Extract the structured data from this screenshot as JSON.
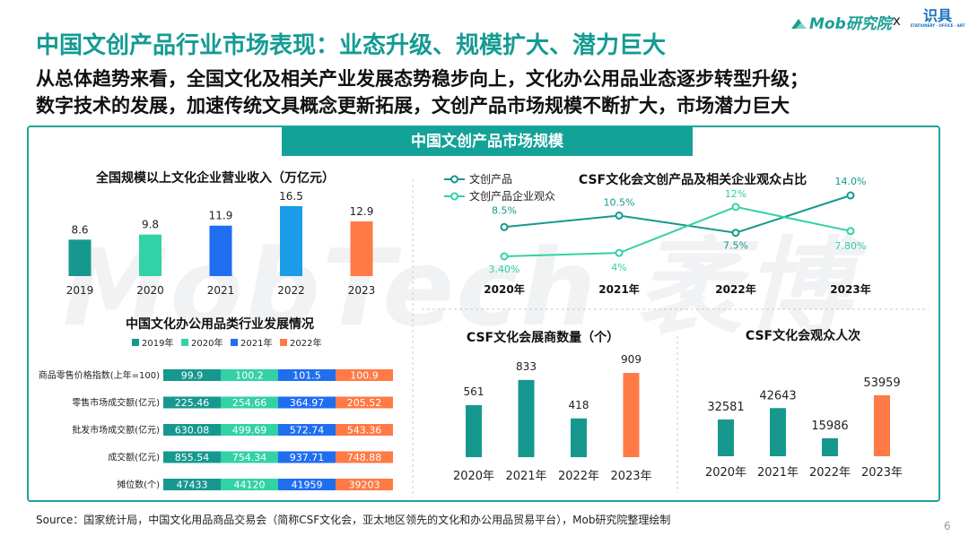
{
  "header": {
    "title": "中国文创产品行业市场表现：业态升级、规模扩大、潜力巨大",
    "subtitle_line1": "从总体趋势来看，全国文化及相关产业发展态势稳步向上，文化办公用品业态逐步转型升级；",
    "subtitle_line2": "数字技术的发展，加速传统文具概念更新拓展，文创产品市场规模不断扩大，市场潜力巨大",
    "logo_text": "Mob研究院",
    "logo_separator": "x",
    "partner_logo": "识具",
    "partner_tagline": "STATIONERY · OFFICE · ART"
  },
  "banner": "中国文创产品市场规模",
  "watermark": "MobTech 袤博",
  "footer": {
    "source": "Source：国家统计局，中国文化用品商品交易会（简称CSF文化会，亚太地区领先的文化和办公用品贸易平台），Mob研究院整理绘制",
    "page": "6"
  },
  "colors": {
    "teal": "#16988f",
    "mint": "#33d1a6",
    "blue": "#1f6ef0",
    "sky": "#1a9ce8",
    "orange": "#ff7a45",
    "brand": "#149b93"
  },
  "chart_data": [
    {
      "type": "bar",
      "title": "全国规模以上文化企业营业收入（万亿元）",
      "categories": [
        "2019",
        "2020",
        "2021",
        "2022",
        "2023"
      ],
      "values": [
        8.6,
        9.8,
        11.9,
        16.5,
        12.9
      ],
      "colors": [
        "#16988f",
        "#33d1a6",
        "#1f6ef0",
        "#1a9ce8",
        "#ff7a45"
      ]
    },
    {
      "type": "line",
      "title": "CSF文化会文创产品及相关企业观众占比",
      "categories": [
        "2020年",
        "2021年",
        "2022年",
        "2023年"
      ],
      "series": [
        {
          "name": "文创产品",
          "values": [
            8.5,
            10.5,
            7.5,
            14.0
          ],
          "labels": [
            "8.5%",
            "10.5%",
            "7.5%",
            "14.0%"
          ],
          "color": "#16988f"
        },
        {
          "name": "文创产品企业观众",
          "values": [
            3.4,
            4,
            12,
            7.8
          ],
          "labels": [
            "3.40%",
            "4%",
            "12%",
            "7.80%"
          ],
          "color": "#33d1a6"
        }
      ]
    },
    {
      "type": "bar",
      "stacked": true,
      "orientation": "horizontal",
      "title": "中国文化办公用品类行业发展情况",
      "legend": [
        "2019年",
        "2020年",
        "2021年",
        "2022年"
      ],
      "colors": [
        "#16988f",
        "#33d1a6",
        "#1f6ef0",
        "#ff7a45"
      ],
      "categories": [
        "商品零售价格指数(上年=100)",
        "零售市场成交额(亿元)",
        "批发市场成交额(亿元)",
        "成交额(亿元)",
        "摊位数(个)"
      ],
      "rows": [
        {
          "labels": [
            "99.9",
            "100.2",
            "101.5",
            "100.9"
          ]
        },
        {
          "labels": [
            "225.46",
            "254.66",
            "364.97",
            "205.52"
          ]
        },
        {
          "labels": [
            "630.08",
            "499.69",
            "572.74",
            "543.36"
          ]
        },
        {
          "labels": [
            "855.54",
            "754.34",
            "937.71",
            "748.88"
          ]
        },
        {
          "labels": [
            "47433",
            "44120",
            "41959",
            "39203"
          ]
        }
      ]
    },
    {
      "type": "bar",
      "title": "CSF文化会展商数量（个）",
      "categories": [
        "2020年",
        "2021年",
        "2022年",
        "2023年"
      ],
      "values": [
        561,
        833,
        418,
        909
      ],
      "colors": [
        "#16988f",
        "#16988f",
        "#16988f",
        "#ff7a45"
      ]
    },
    {
      "type": "bar",
      "title": "CSF文化会观众人次",
      "categories": [
        "2020年",
        "2021年",
        "2022年",
        "2023年"
      ],
      "values": [
        32581,
        42643,
        15986,
        53959
      ],
      "colors": [
        "#16988f",
        "#16988f",
        "#16988f",
        "#ff7a45"
      ]
    }
  ]
}
